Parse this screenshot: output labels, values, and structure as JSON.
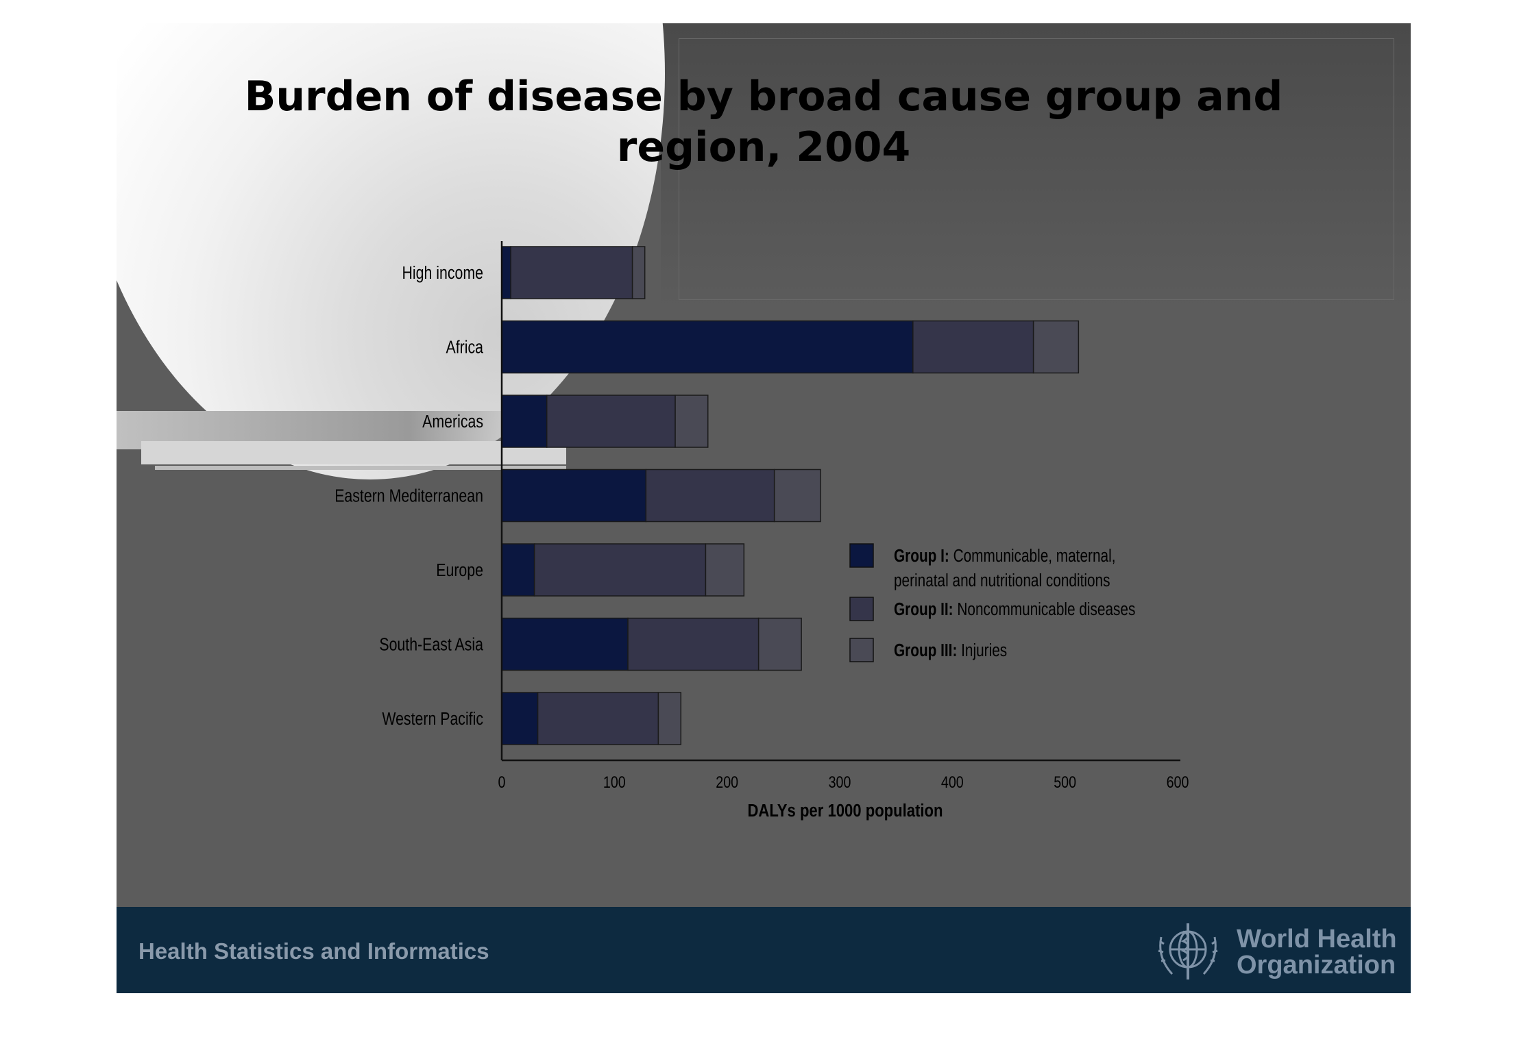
{
  "slide": {
    "title_line1": "Burden of disease by broad cause group and",
    "title_line2": "region, 2004"
  },
  "footer": {
    "text": "Health Statistics and Informatics",
    "org_line1": "World Health",
    "org_line2": "Organization"
  },
  "chart_data": {
    "type": "bar",
    "orientation": "horizontal",
    "stacked": true,
    "categories": [
      "High income",
      "Africa",
      "Americas",
      "Eastern Mediterranean",
      "Europe",
      "South-East Asia",
      "Western Pacific"
    ],
    "series": [
      {
        "name": "Group I: Communicable, maternal, perinatal and nutritional conditions",
        "values": [
          8,
          365,
          40,
          128,
          29,
          112,
          32
        ],
        "color": "#0b1740"
      },
      {
        "name": "Group II: Noncommunicable diseases",
        "values": [
          108,
          107,
          114,
          114,
          152,
          116,
          107
        ],
        "color": "#35354a"
      },
      {
        "name": "Group III: Injuries",
        "values": [
          11,
          40,
          29,
          41,
          34,
          38,
          20
        ],
        "color": "#4a4a55"
      }
    ],
    "legend": [
      {
        "bold": "Group I:",
        "text": " Communicable, maternal,",
        "text2": "perinatal and nutritional conditions"
      },
      {
        "bold": "Group II:",
        "text": " Noncommunicable diseases"
      },
      {
        "bold": "Group III:",
        "text": " Injuries"
      }
    ],
    "legend_position": "right",
    "xlabel": "DALYs per 1000 population",
    "ylabel": "",
    "xlim": [
      0,
      600
    ],
    "xticks": [
      0,
      100,
      200,
      300,
      400,
      500,
      600
    ],
    "grid": false
  }
}
